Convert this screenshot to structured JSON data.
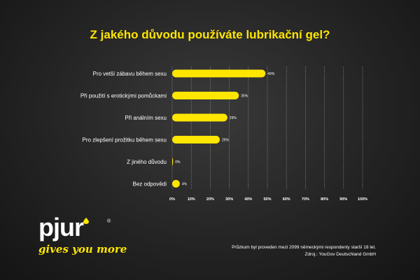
{
  "chart_data": {
    "type": "bar",
    "orientation": "horizontal",
    "title": "Z jakého důvodu používáte lubrikační gel?",
    "categories": [
      "Pro vetší zábavu během sexu",
      "Při použití s erotickými pomůckami",
      "Při análním sexu",
      "Pro zlepšení prožitku během sexu",
      "Z jiného důvodu",
      "Bez odpovědi"
    ],
    "values": [
      49,
      35,
      29,
      25,
      0,
      4
    ],
    "value_labels": [
      "49%",
      "35%",
      "29%",
      "25%",
      "0%",
      "4%"
    ],
    "xlim": [
      0,
      100
    ],
    "ticks": [
      "0%",
      "10%",
      "20%",
      "30%",
      "40%",
      "50%",
      "60%",
      "70%",
      "80%",
      "90%",
      "100%"
    ],
    "grid": true,
    "bar_color": "#ffe600"
  },
  "logo": {
    "word": "pjur",
    "registered": "®",
    "tagline": "gives you more"
  },
  "footnote": {
    "line1": "Průzkum byl proveden mezi 2099 německými respondenty starší 18 let.",
    "line2": "Zdroj.: YouGov Deutschland GmbH"
  }
}
